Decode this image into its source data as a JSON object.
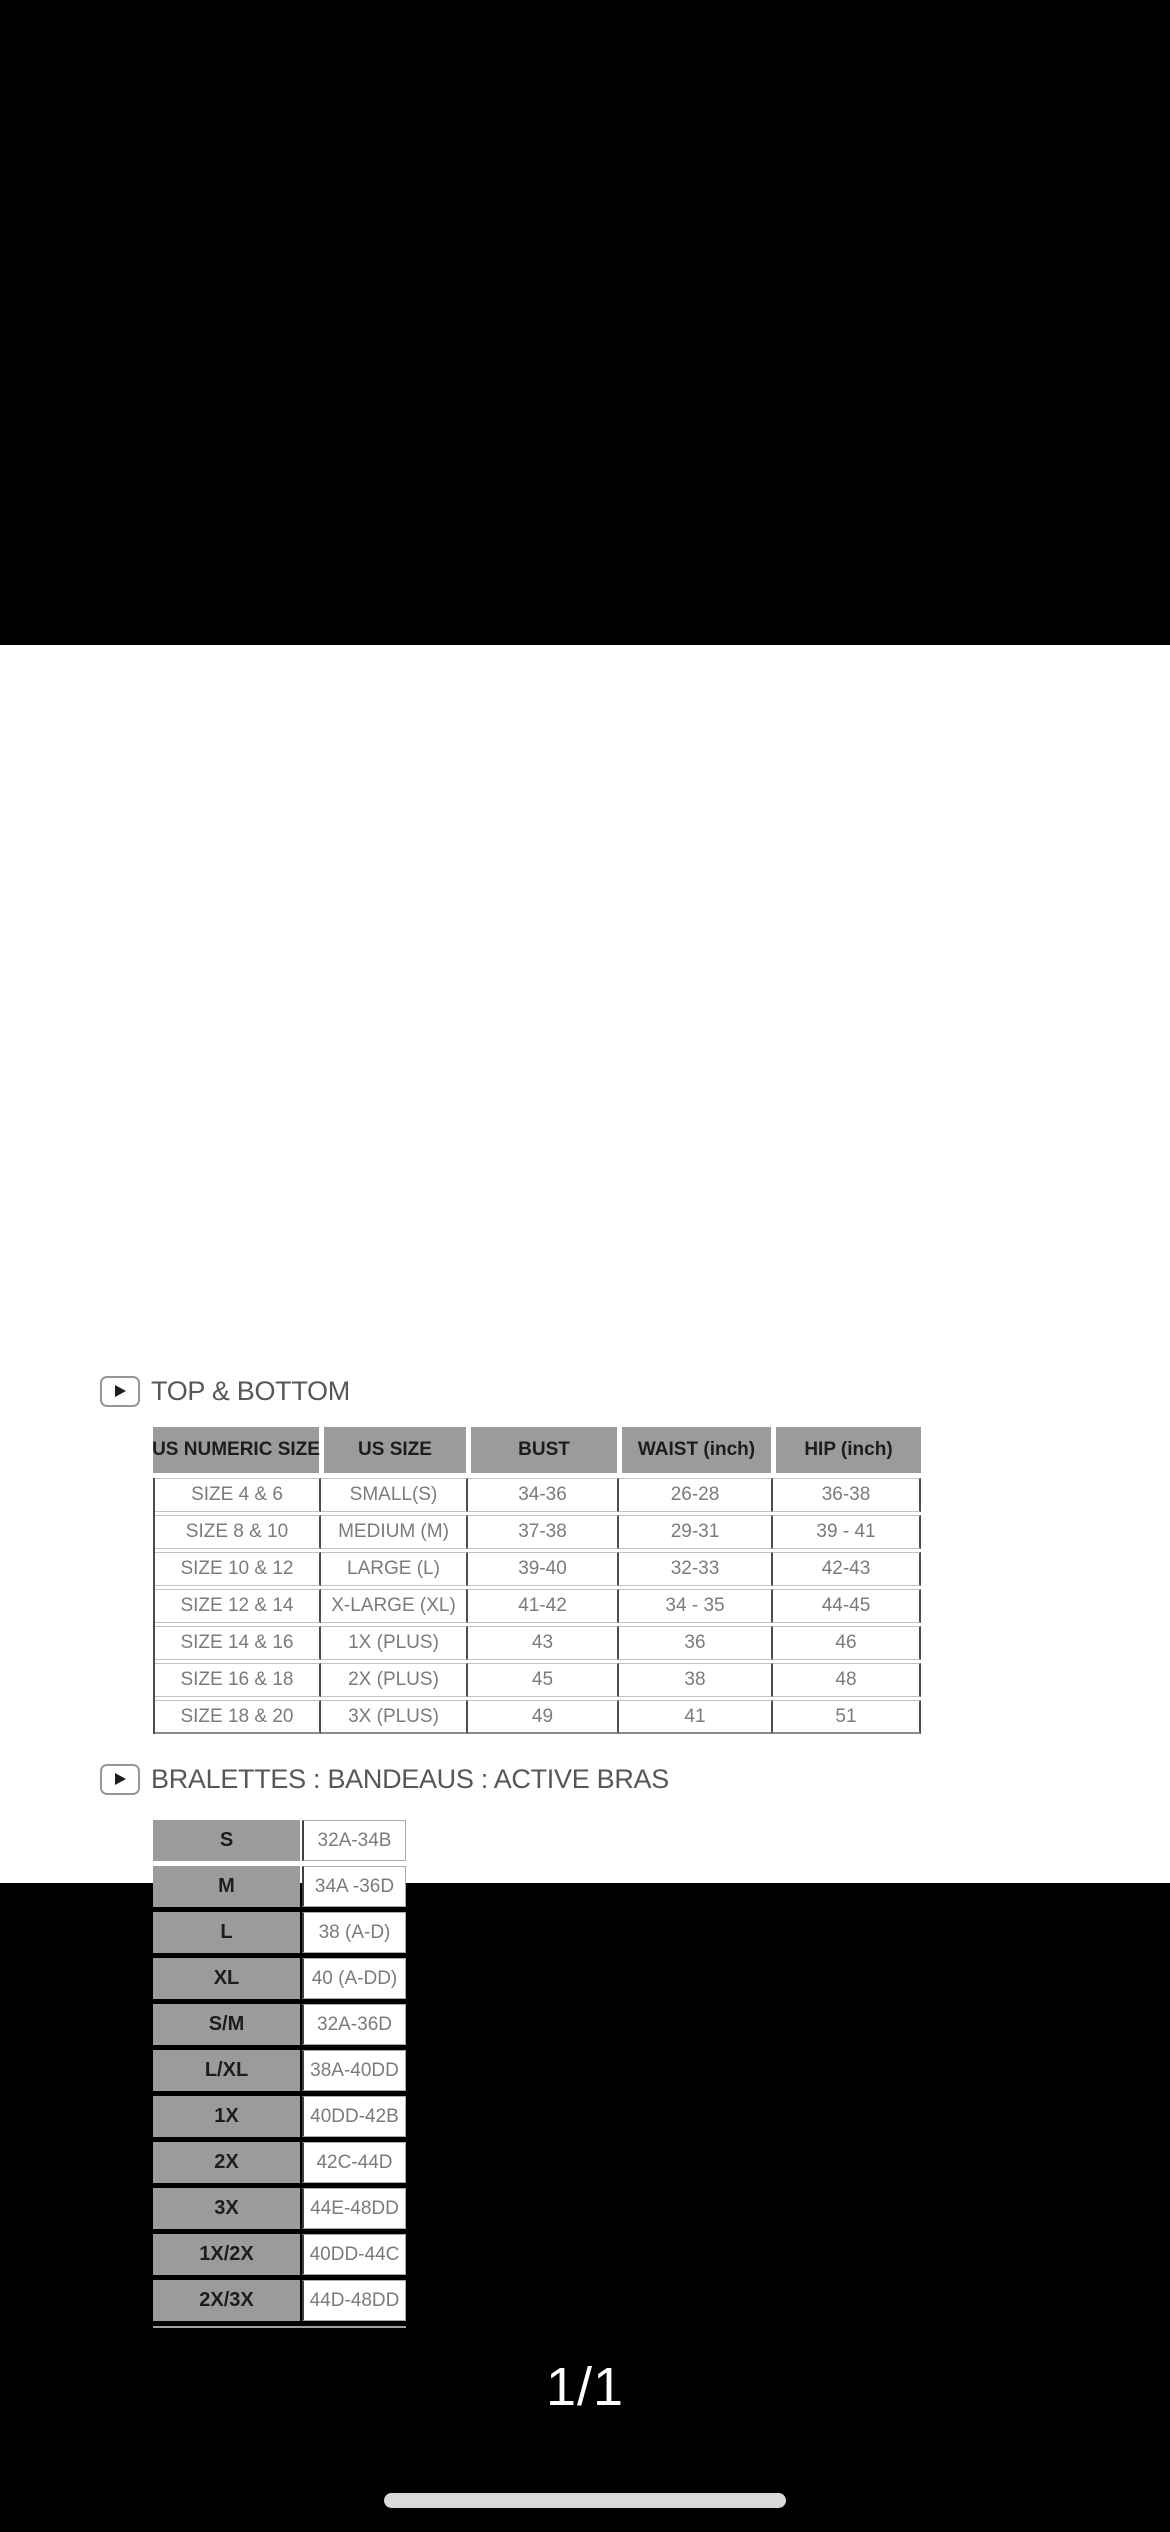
{
  "colors": {
    "background": "#000000",
    "canvas": "#ffffff",
    "header_cell_bg": "#9b9b9b",
    "dark_border": "#4d4d4d",
    "table_text": "#7b7a7e",
    "header_text": "#1d1d1d",
    "home_indicator": "#d9d9d9"
  },
  "size_chart": {
    "top_bottom": {
      "icon": "play-icon",
      "title": "TOP & BOTTOM",
      "columns": [
        "US NUMERIC SIZE",
        "US SIZE",
        "BUST",
        "WAIST (inch)",
        "HIP (inch)"
      ],
      "rows": [
        [
          "SIZE 4 & 6",
          "SMALL(S)",
          "34-36",
          "26-28",
          "36-38"
        ],
        [
          "SIZE 8 & 10",
          "MEDIUM (M)",
          "37-38",
          "29-31",
          "39 - 41"
        ],
        [
          "SIZE 10 & 12",
          "LARGE (L)",
          "39-40",
          "32-33",
          "42-43"
        ],
        [
          "SIZE 12 & 14",
          "X-LARGE (XL)",
          "41-42",
          "34 - 35",
          "44-45"
        ],
        [
          "SIZE 14 & 16",
          "1X (PLUS)",
          "43",
          "36",
          "46"
        ],
        [
          "SIZE 16 & 18",
          "2X (PLUS)",
          "45",
          "38",
          "48"
        ],
        [
          "SIZE 18 & 20",
          "3X (PLUS)",
          "49",
          "41",
          "51"
        ]
      ]
    },
    "bralettes": {
      "icon": "play-icon",
      "title": "BRALETTES : BANDEAUS : ACTIVE BRAS",
      "rows": [
        [
          "S",
          "32A-34B"
        ],
        [
          "M",
          "34A -36D"
        ],
        [
          "L",
          "38 (A-D)"
        ],
        [
          "XL",
          "40 (A-DD)"
        ],
        [
          "S/M",
          "32A-36D"
        ],
        [
          "L/XL",
          "38A-40DD"
        ],
        [
          "1X",
          "40DD-42B"
        ],
        [
          "2X",
          "42C-44D"
        ],
        [
          "3X",
          "44E-48DD"
        ],
        [
          "1X/2X",
          "40DD-44C"
        ],
        [
          "2X/3X",
          "44D-48DD"
        ]
      ]
    }
  },
  "viewer": {
    "page_indicator": "1/1"
  }
}
